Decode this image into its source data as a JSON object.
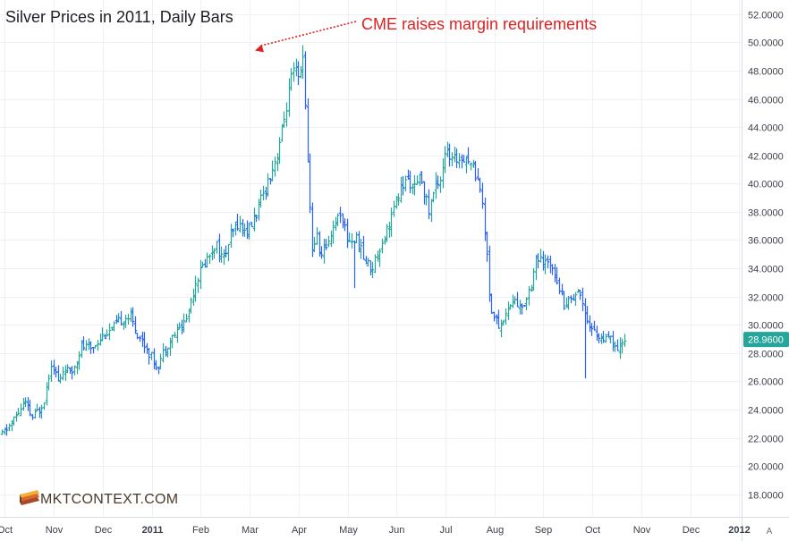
{
  "colors": {
    "up": "#26a69a",
    "down": "#2962ff",
    "annotation": "#e02020",
    "price_tag": "#26a69a",
    "grid": "#eef1f6"
  },
  "brand": {
    "text": "MKTCONTEXT.COM",
    "icon": "stacked-books-logo-icon"
  },
  "price_scale": {
    "auto_label": "A"
  },
  "chart_data": {
    "type": "ohlc",
    "title": "Silver Prices in 2011, Daily Bars",
    "annotation": {
      "text": "CME raises margin requirements",
      "target_x": 4.0,
      "target_y": 49.8
    },
    "last_price": 28.96,
    "last_price_label": "28.9600",
    "ylim": [
      16.4,
      53.0
    ],
    "xlim": [
      -1.1,
      14.05
    ],
    "y_ticks": [
      18,
      20,
      22,
      24,
      26,
      28,
      30,
      32,
      34,
      36,
      38,
      40,
      42,
      44,
      46,
      48,
      50,
      52
    ],
    "y_tick_labels": [
      "18.0000",
      "20.0000",
      "22.0000",
      "24.0000",
      "26.0000",
      "28.0000",
      "30.0000",
      "32.0000",
      "34.0000",
      "36.0000",
      "38.0000",
      "40.0000",
      "42.0000",
      "44.0000",
      "46.0000",
      "48.0000",
      "50.0000",
      "52.0000"
    ],
    "x_ticks": [
      {
        "label": "Oct",
        "x": -1,
        "bold": false
      },
      {
        "label": "Nov",
        "x": 0,
        "bold": false
      },
      {
        "label": "Dec",
        "x": 1,
        "bold": false
      },
      {
        "label": "2011",
        "x": 2,
        "bold": true
      },
      {
        "label": "Feb",
        "x": 3,
        "bold": false
      },
      {
        "label": "Mar",
        "x": 4,
        "bold": false
      },
      {
        "label": "Apr",
        "x": 5,
        "bold": false
      },
      {
        "label": "May",
        "x": 6,
        "bold": false
      },
      {
        "label": "Jun",
        "x": 7,
        "bold": false
      },
      {
        "label": "Jul",
        "x": 8,
        "bold": false
      },
      {
        "label": "Aug",
        "x": 9,
        "bold": false
      },
      {
        "label": "Sep",
        "x": 10,
        "bold": false
      },
      {
        "label": "Oct",
        "x": 11,
        "bold": false
      },
      {
        "label": "Nov",
        "x": 12,
        "bold": false
      },
      {
        "label": "Dec",
        "x": 13,
        "bold": false
      },
      {
        "label": "2012",
        "x": 14,
        "bold": true
      }
    ],
    "anchors": [
      [
        -1.06,
        22.2
      ],
      [
        -0.8,
        23.4
      ],
      [
        -0.6,
        24.5
      ],
      [
        -0.45,
        23.4
      ],
      [
        -0.3,
        24.0
      ],
      [
        -0.2,
        24.8
      ],
      [
        -0.05,
        27.5
      ],
      [
        0.1,
        25.8
      ],
      [
        0.2,
        27.0
      ],
      [
        0.35,
        26.5
      ],
      [
        0.55,
        28.5
      ],
      [
        0.75,
        28.3
      ],
      [
        1.0,
        29.3
      ],
      [
        1.2,
        29.7
      ],
      [
        1.4,
        30.5
      ],
      [
        1.55,
        30.6
      ],
      [
        1.7,
        29.4
      ],
      [
        1.9,
        28.3
      ],
      [
        2.1,
        27.0
      ],
      [
        2.3,
        28.6
      ],
      [
        2.5,
        29.5
      ],
      [
        2.7,
        30.4
      ],
      [
        2.9,
        33.2
      ],
      [
        3.1,
        34.5
      ],
      [
        3.3,
        35.8
      ],
      [
        3.45,
        34.5
      ],
      [
        3.6,
        36.2
      ],
      [
        3.75,
        37.2
      ],
      [
        3.9,
        36.6
      ],
      [
        4.0,
        36.8
      ],
      [
        4.2,
        38.5
      ],
      [
        4.4,
        40.5
      ],
      [
        4.55,
        42.0
      ],
      [
        4.7,
        44.5
      ],
      [
        4.85,
        47.5
      ],
      [
        4.95,
        48.0
      ],
      [
        5.0,
        47.0
      ],
      [
        5.08,
        49.0
      ],
      [
        5.12,
        47.5
      ],
      [
        5.15,
        43.0
      ],
      [
        5.22,
        38.5
      ],
      [
        5.28,
        35.0
      ],
      [
        5.35,
        36.5
      ],
      [
        5.45,
        34.8
      ],
      [
        5.55,
        35.5
      ],
      [
        5.7,
        37.0
      ],
      [
        5.85,
        38.0
      ],
      [
        6.0,
        36.0
      ],
      [
        6.2,
        36.0
      ],
      [
        6.35,
        34.5
      ],
      [
        6.5,
        34.0
      ],
      [
        6.65,
        35.5
      ],
      [
        6.8,
        36.8
      ],
      [
        6.95,
        38.3
      ],
      [
        7.1,
        39.8
      ],
      [
        7.25,
        40.3
      ],
      [
        7.35,
        39.5
      ],
      [
        7.5,
        40.5
      ],
      [
        7.65,
        38.0
      ],
      [
        7.8,
        40.0
      ],
      [
        7.9,
        40.5
      ],
      [
        8.0,
        42.5
      ],
      [
        8.1,
        41.5
      ],
      [
        8.25,
        41.8
      ],
      [
        8.4,
        42.0
      ],
      [
        8.55,
        41.2
      ],
      [
        8.7,
        40.0
      ],
      [
        8.8,
        36.5
      ],
      [
        8.85,
        35.2
      ],
      [
        8.9,
        31.5
      ],
      [
        9.0,
        30.5
      ],
      [
        9.1,
        29.8
      ],
      [
        9.25,
        31.0
      ],
      [
        9.4,
        31.8
      ],
      [
        9.55,
        31.0
      ],
      [
        9.75,
        33.0
      ],
      [
        9.85,
        34.8
      ],
      [
        10.0,
        34.2
      ],
      [
        10.15,
        34.5
      ],
      [
        10.3,
        33.0
      ],
      [
        10.4,
        31.5
      ],
      [
        10.55,
        31.8
      ],
      [
        10.7,
        32.5
      ],
      [
        10.8,
        31.6
      ],
      [
        10.95,
        29.8
      ],
      [
        11.1,
        29.3
      ],
      [
        11.25,
        28.8
      ],
      [
        11.4,
        29.0
      ],
      [
        11.5,
        27.8
      ],
      [
        11.6,
        28.8
      ],
      [
        11.7,
        29.1
      ]
    ]
  }
}
